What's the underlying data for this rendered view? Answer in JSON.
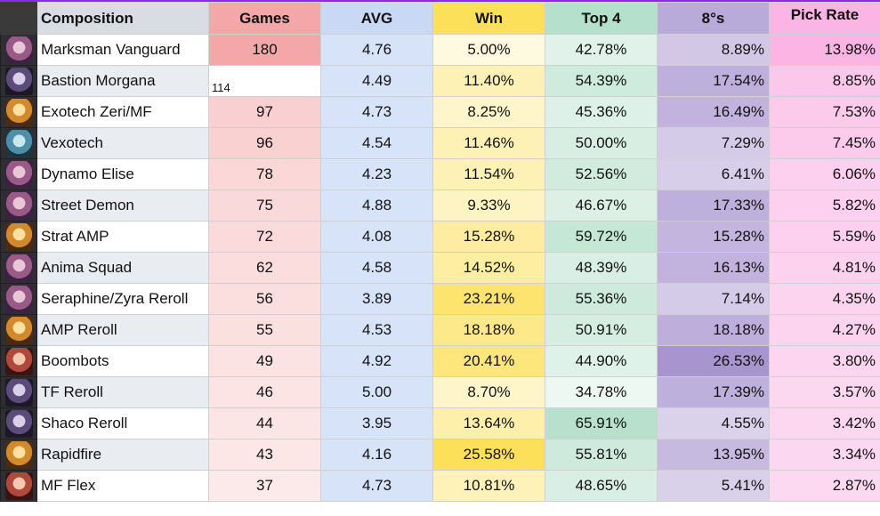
{
  "headers": {
    "composition": "Composition",
    "games": "Games",
    "avg": "AVG",
    "win": "Win",
    "top4": "Top 4",
    "eights": "8°s",
    "pick_rate": "Pick Rate"
  },
  "colors": {
    "games_base": "#f4a7a8",
    "win_base": "#fde059",
    "top4_base": "#b5e0cb",
    "eights_base": "#a895d0",
    "pick_base": "#fab5e4"
  },
  "rows": [
    {
      "icon": "champion-portrait-icon",
      "tone": "",
      "name": "Marksman Vanguard",
      "games": "180",
      "avg": "4.76",
      "win": "5.00%",
      "top4": "42.78%",
      "eights": "8.89%",
      "pick": "13.98%",
      "games_level": 1.0,
      "win_level": 0.05,
      "top4_level": 0.3,
      "eights_level": 0.25,
      "pick_level": 1.0
    },
    {
      "icon": "champion-portrait-icon",
      "tone": "dark",
      "name": "Bastion Morgana",
      "games": "114",
      "avg": "4.49",
      "win": "11.40%",
      "top4": "54.39%",
      "eights": "17.54%",
      "pick": "8.85%",
      "games_level": 0.0,
      "win_level": 0.35,
      "top4_level": 0.6,
      "eights_level": 0.6,
      "pick_level": 0.55
    },
    {
      "icon": "champion-portrait-icon",
      "tone": "gold",
      "name": "Exotech Zeri/MF",
      "games": "97",
      "avg": "4.73",
      "win": "8.25%",
      "top4": "45.36%",
      "eights": "16.49%",
      "pick": "7.53%",
      "games_level": 0.45,
      "win_level": 0.2,
      "top4_level": 0.35,
      "eights_level": 0.55,
      "pick_level": 0.45
    },
    {
      "icon": "champion-portrait-icon",
      "tone": "teal",
      "name": "Vexotech",
      "games": "96",
      "avg": "4.54",
      "win": "11.46%",
      "top4": "50.00%",
      "eights": "7.29%",
      "pick": "7.45%",
      "games_level": 0.44,
      "win_level": 0.35,
      "top4_level": 0.45,
      "eights_level": 0.2,
      "pick_level": 0.45
    },
    {
      "icon": "champion-portrait-icon",
      "tone": "",
      "name": "Dynamo Elise",
      "games": "78",
      "avg": "4.23",
      "win": "11.54%",
      "top4": "52.56%",
      "eights": "6.41%",
      "pick": "6.06%",
      "games_level": 0.35,
      "win_level": 0.35,
      "top4_level": 0.55,
      "eights_level": 0.15,
      "pick_level": 0.35
    },
    {
      "icon": "champion-portrait-icon",
      "tone": "",
      "name": "Street Demon",
      "games": "75",
      "avg": "4.88",
      "win": "9.33%",
      "top4": "46.67%",
      "eights": "17.33%",
      "pick": "5.82%",
      "games_level": 0.33,
      "win_level": 0.25,
      "top4_level": 0.38,
      "eights_level": 0.6,
      "pick_level": 0.35
    },
    {
      "icon": "champion-portrait-icon",
      "tone": "gold",
      "name": "Strat AMP",
      "games": "72",
      "avg": "4.08",
      "win": "15.28%",
      "top4": "59.72%",
      "eights": "15.28%",
      "pick": "5.59%",
      "games_level": 0.32,
      "win_level": 0.5,
      "top4_level": 0.75,
      "eights_level": 0.52,
      "pick_level": 0.33
    },
    {
      "icon": "champion-portrait-icon",
      "tone": "",
      "name": "Anima Squad",
      "games": "62",
      "avg": "4.58",
      "win": "14.52%",
      "top4": "48.39%",
      "eights": "16.13%",
      "pick": "4.81%",
      "games_level": 0.28,
      "win_level": 0.48,
      "top4_level": 0.42,
      "eights_level": 0.55,
      "pick_level": 0.28
    },
    {
      "icon": "champion-portrait-icon",
      "tone": "",
      "name": "Seraphine/Zyra Reroll",
      "games": "56",
      "avg": "3.89",
      "win": "23.21%",
      "top4": "55.36%",
      "eights": "7.14%",
      "pick": "4.35%",
      "games_level": 0.25,
      "win_level": 0.85,
      "top4_level": 0.62,
      "eights_level": 0.2,
      "pick_level": 0.25
    },
    {
      "icon": "champion-portrait-icon",
      "tone": "gold",
      "name": "AMP Reroll",
      "games": "55",
      "avg": "4.53",
      "win": "18.18%",
      "top4": "50.91%",
      "eights": "18.18%",
      "pick": "4.27%",
      "games_level": 0.24,
      "win_level": 0.65,
      "top4_level": 0.48,
      "eights_level": 0.63,
      "pick_level": 0.24
    },
    {
      "icon": "champion-portrait-icon",
      "tone": "red",
      "name": "Boombots",
      "games": "49",
      "avg": "4.92",
      "win": "20.41%",
      "top4": "44.90%",
      "eights": "26.53%",
      "pick": "3.80%",
      "games_level": 0.2,
      "win_level": 0.75,
      "top4_level": 0.33,
      "eights_level": 1.0,
      "pick_level": 0.2
    },
    {
      "icon": "champion-portrait-icon",
      "tone": "dark",
      "name": "TF Reroll",
      "games": "46",
      "avg": "5.00",
      "win": "8.70%",
      "top4": "34.78%",
      "eights": "17.39%",
      "pick": "3.57%",
      "games_level": 0.18,
      "win_level": 0.2,
      "top4_level": 0.1,
      "eights_level": 0.6,
      "pick_level": 0.18
    },
    {
      "icon": "champion-portrait-icon",
      "tone": "dark",
      "name": "Shaco Reroll",
      "games": "44",
      "avg": "3.95",
      "win": "13.64%",
      "top4": "65.91%",
      "eights": "4.55%",
      "pick": "3.42%",
      "games_level": 0.17,
      "win_level": 0.42,
      "top4_level": 0.95,
      "eights_level": 0.1,
      "pick_level": 0.17
    },
    {
      "icon": "champion-portrait-icon",
      "tone": "gold",
      "name": "Rapidfire",
      "games": "43",
      "avg": "4.16",
      "win": "25.58%",
      "top4": "55.81%",
      "eights": "13.95%",
      "pick": "3.34%",
      "games_level": 0.16,
      "win_level": 1.0,
      "top4_level": 0.62,
      "eights_level": 0.45,
      "pick_level": 0.16
    },
    {
      "icon": "champion-portrait-icon",
      "tone": "red",
      "name": "MF Flex",
      "games": "37",
      "avg": "4.73",
      "win": "10.81%",
      "top4": "48.65%",
      "eights": "5.41%",
      "pick": "2.87%",
      "games_level": 0.12,
      "win_level": 0.32,
      "top4_level": 0.42,
      "eights_level": 0.12,
      "pick_level": 0.12
    }
  ]
}
